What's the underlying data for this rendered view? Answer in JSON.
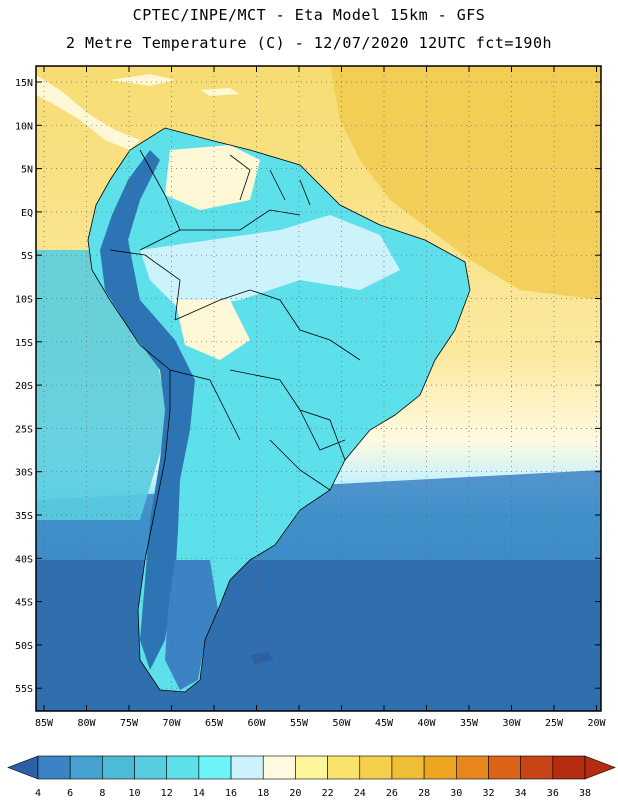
{
  "header": {
    "line1": "CPTEC/INPE/MCT -  Eta Model 15km - GFS",
    "line2": "2 Metre Temperature (C) - 12/07/2020 12UTC fct=190h"
  },
  "map": {
    "lat_labels": [
      "15N",
      "10N",
      "5N",
      "EQ",
      "5S",
      "10S",
      "15S",
      "20S",
      "25S",
      "30S",
      "35S",
      "40S",
      "45S",
      "50S",
      "55S"
    ],
    "lon_labels": [
      "85W",
      "80W",
      "75W",
      "70W",
      "65W",
      "60W",
      "55W",
      "50W",
      "45W",
      "40W",
      "35W",
      "30W",
      "25W",
      "20W"
    ],
    "grid": "dotted",
    "colors": {
      "ocean_warm": "#f6d86a",
      "ocean_hot": "#f0c84a",
      "land_mild": "#fff8d6",
      "land_cool": "#5ce6ef",
      "andes": "#2c74b4",
      "south_ocean": "#2f6fb0"
    }
  },
  "colorbar": {
    "ticks": [
      "4",
      "6",
      "8",
      "10",
      "12",
      "14",
      "16",
      "18",
      "20",
      "22",
      "24",
      "26",
      "28",
      "30",
      "32",
      "34",
      "36",
      "38"
    ],
    "colors": [
      "#2c5fa3",
      "#3b83c4",
      "#45a1d0",
      "#4dbad8",
      "#58cde0",
      "#5de0ea",
      "#6df4f6",
      "#ccf2fb",
      "#fffae0",
      "#fdf59a",
      "#f9e36a",
      "#f4cf4c",
      "#efbd36",
      "#eda522",
      "#e7861c",
      "#db641a",
      "#c94416",
      "#b52c10"
    ]
  }
}
